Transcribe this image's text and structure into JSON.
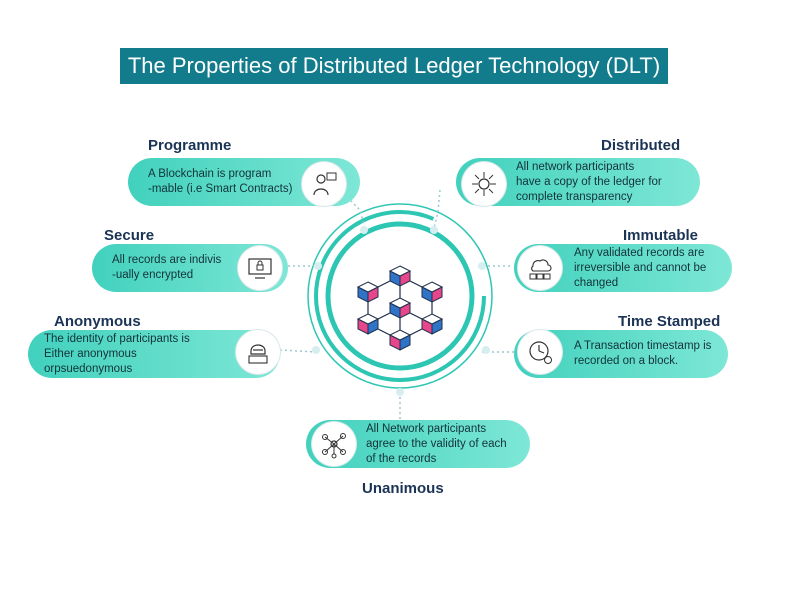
{
  "title": "The Properties of Distributed Ledger Technology (DLT)",
  "colors": {
    "title_bg": "#137c8c",
    "pill_start": "#41d1bd",
    "pill_end": "#7ee7d6",
    "ring": "#2cc6b3",
    "cube_blue": "#2f74c6",
    "cube_pink": "#e7468a",
    "label_text": "#1b3355"
  },
  "properties": [
    {
      "id": "programme",
      "heading": "Programme",
      "text": "A Blockchain is program\n-mable (i.e Smart Contracts)",
      "icon": "engineer-icon"
    },
    {
      "id": "distributed",
      "heading": "Distributed",
      "text": "All network participants\nhave a copy of the ledger for\ncomplete transparency",
      "icon": "network-gear-icon"
    },
    {
      "id": "secure",
      "heading": "Secure",
      "text": "All records are indivis\n-ually encrypted",
      "icon": "monitor-lock-icon"
    },
    {
      "id": "immutable",
      "heading": "Immutable",
      "text": "Any validated records are\nirreversible and cannot be\nchanged",
      "icon": "cloud-servers-icon"
    },
    {
      "id": "anonymous",
      "heading": "Anonymous",
      "text": "The identity of participants is\nEither anonymous orpsuedonymous",
      "icon": "hacker-icon"
    },
    {
      "id": "time_stamped",
      "heading": "Time Stamped",
      "text": "A Transaction timestamp is\nrecorded on a block.",
      "icon": "clock-gear-icon"
    },
    {
      "id": "unanimous",
      "heading": "Unanimous",
      "text": "All Network participants\nagree to the validity of each\nof the  records",
      "icon": "hub-nodes-icon"
    }
  ],
  "center_icon": "blockchain-cubes-icon"
}
